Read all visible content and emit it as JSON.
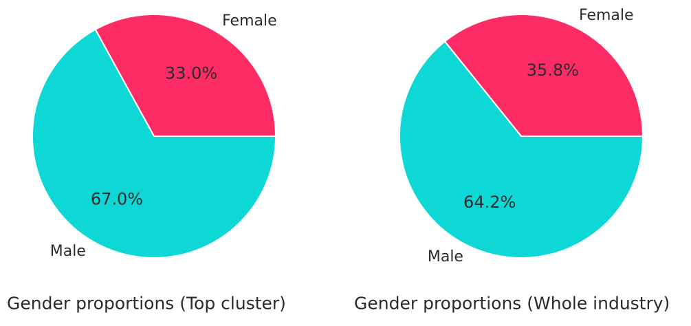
{
  "colors": {
    "female": "#fe2c64",
    "male": "#0ed8d5",
    "text": "#2b2b2b",
    "background": "#ffffff"
  },
  "chart_data": [
    {
      "type": "pie",
      "title": "Gender proportions (Top cluster)",
      "categories": [
        "Female",
        "Male"
      ],
      "values": [
        33.0,
        67.0
      ],
      "labels": [
        "33.0%",
        "67.0%"
      ],
      "colors": [
        "#fe2c64",
        "#0ed8d5"
      ]
    },
    {
      "type": "pie",
      "title": "Gender proportions (Whole industry)",
      "categories": [
        "Female",
        "Male"
      ],
      "values": [
        35.8,
        64.2
      ],
      "labels": [
        "35.8%",
        "64.2%"
      ],
      "colors": [
        "#fe2c64",
        "#0ed8d5"
      ]
    }
  ]
}
